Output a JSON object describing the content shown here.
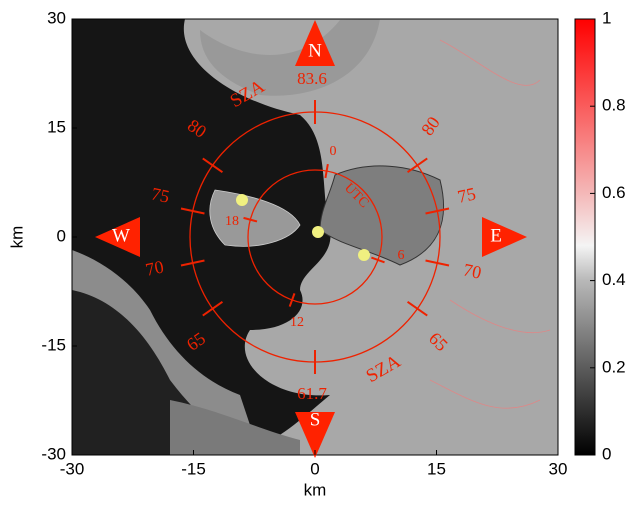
{
  "chart_data": {
    "type": "map",
    "xlabel": "km",
    "ylabel": "km",
    "xlim": [
      -30,
      30
    ],
    "ylim": [
      -30,
      30
    ],
    "xticks": [
      -30,
      -15,
      0,
      15,
      30
    ],
    "yticks": [
      -30,
      -15,
      0,
      15,
      30
    ],
    "colorbar": {
      "lim": [
        0,
        1
      ],
      "ticks": [
        0,
        0.2,
        0.4,
        0.6,
        0.8,
        1
      ]
    },
    "compass": [
      "N",
      "S",
      "E",
      "W"
    ],
    "annotations": [
      "83.6",
      "61.7",
      "80",
      "75",
      "70",
      "65",
      "80",
      "75",
      "70",
      "65",
      "SZA",
      "SZA",
      "0",
      "6",
      "12",
      "18",
      "UTC"
    ]
  }
}
